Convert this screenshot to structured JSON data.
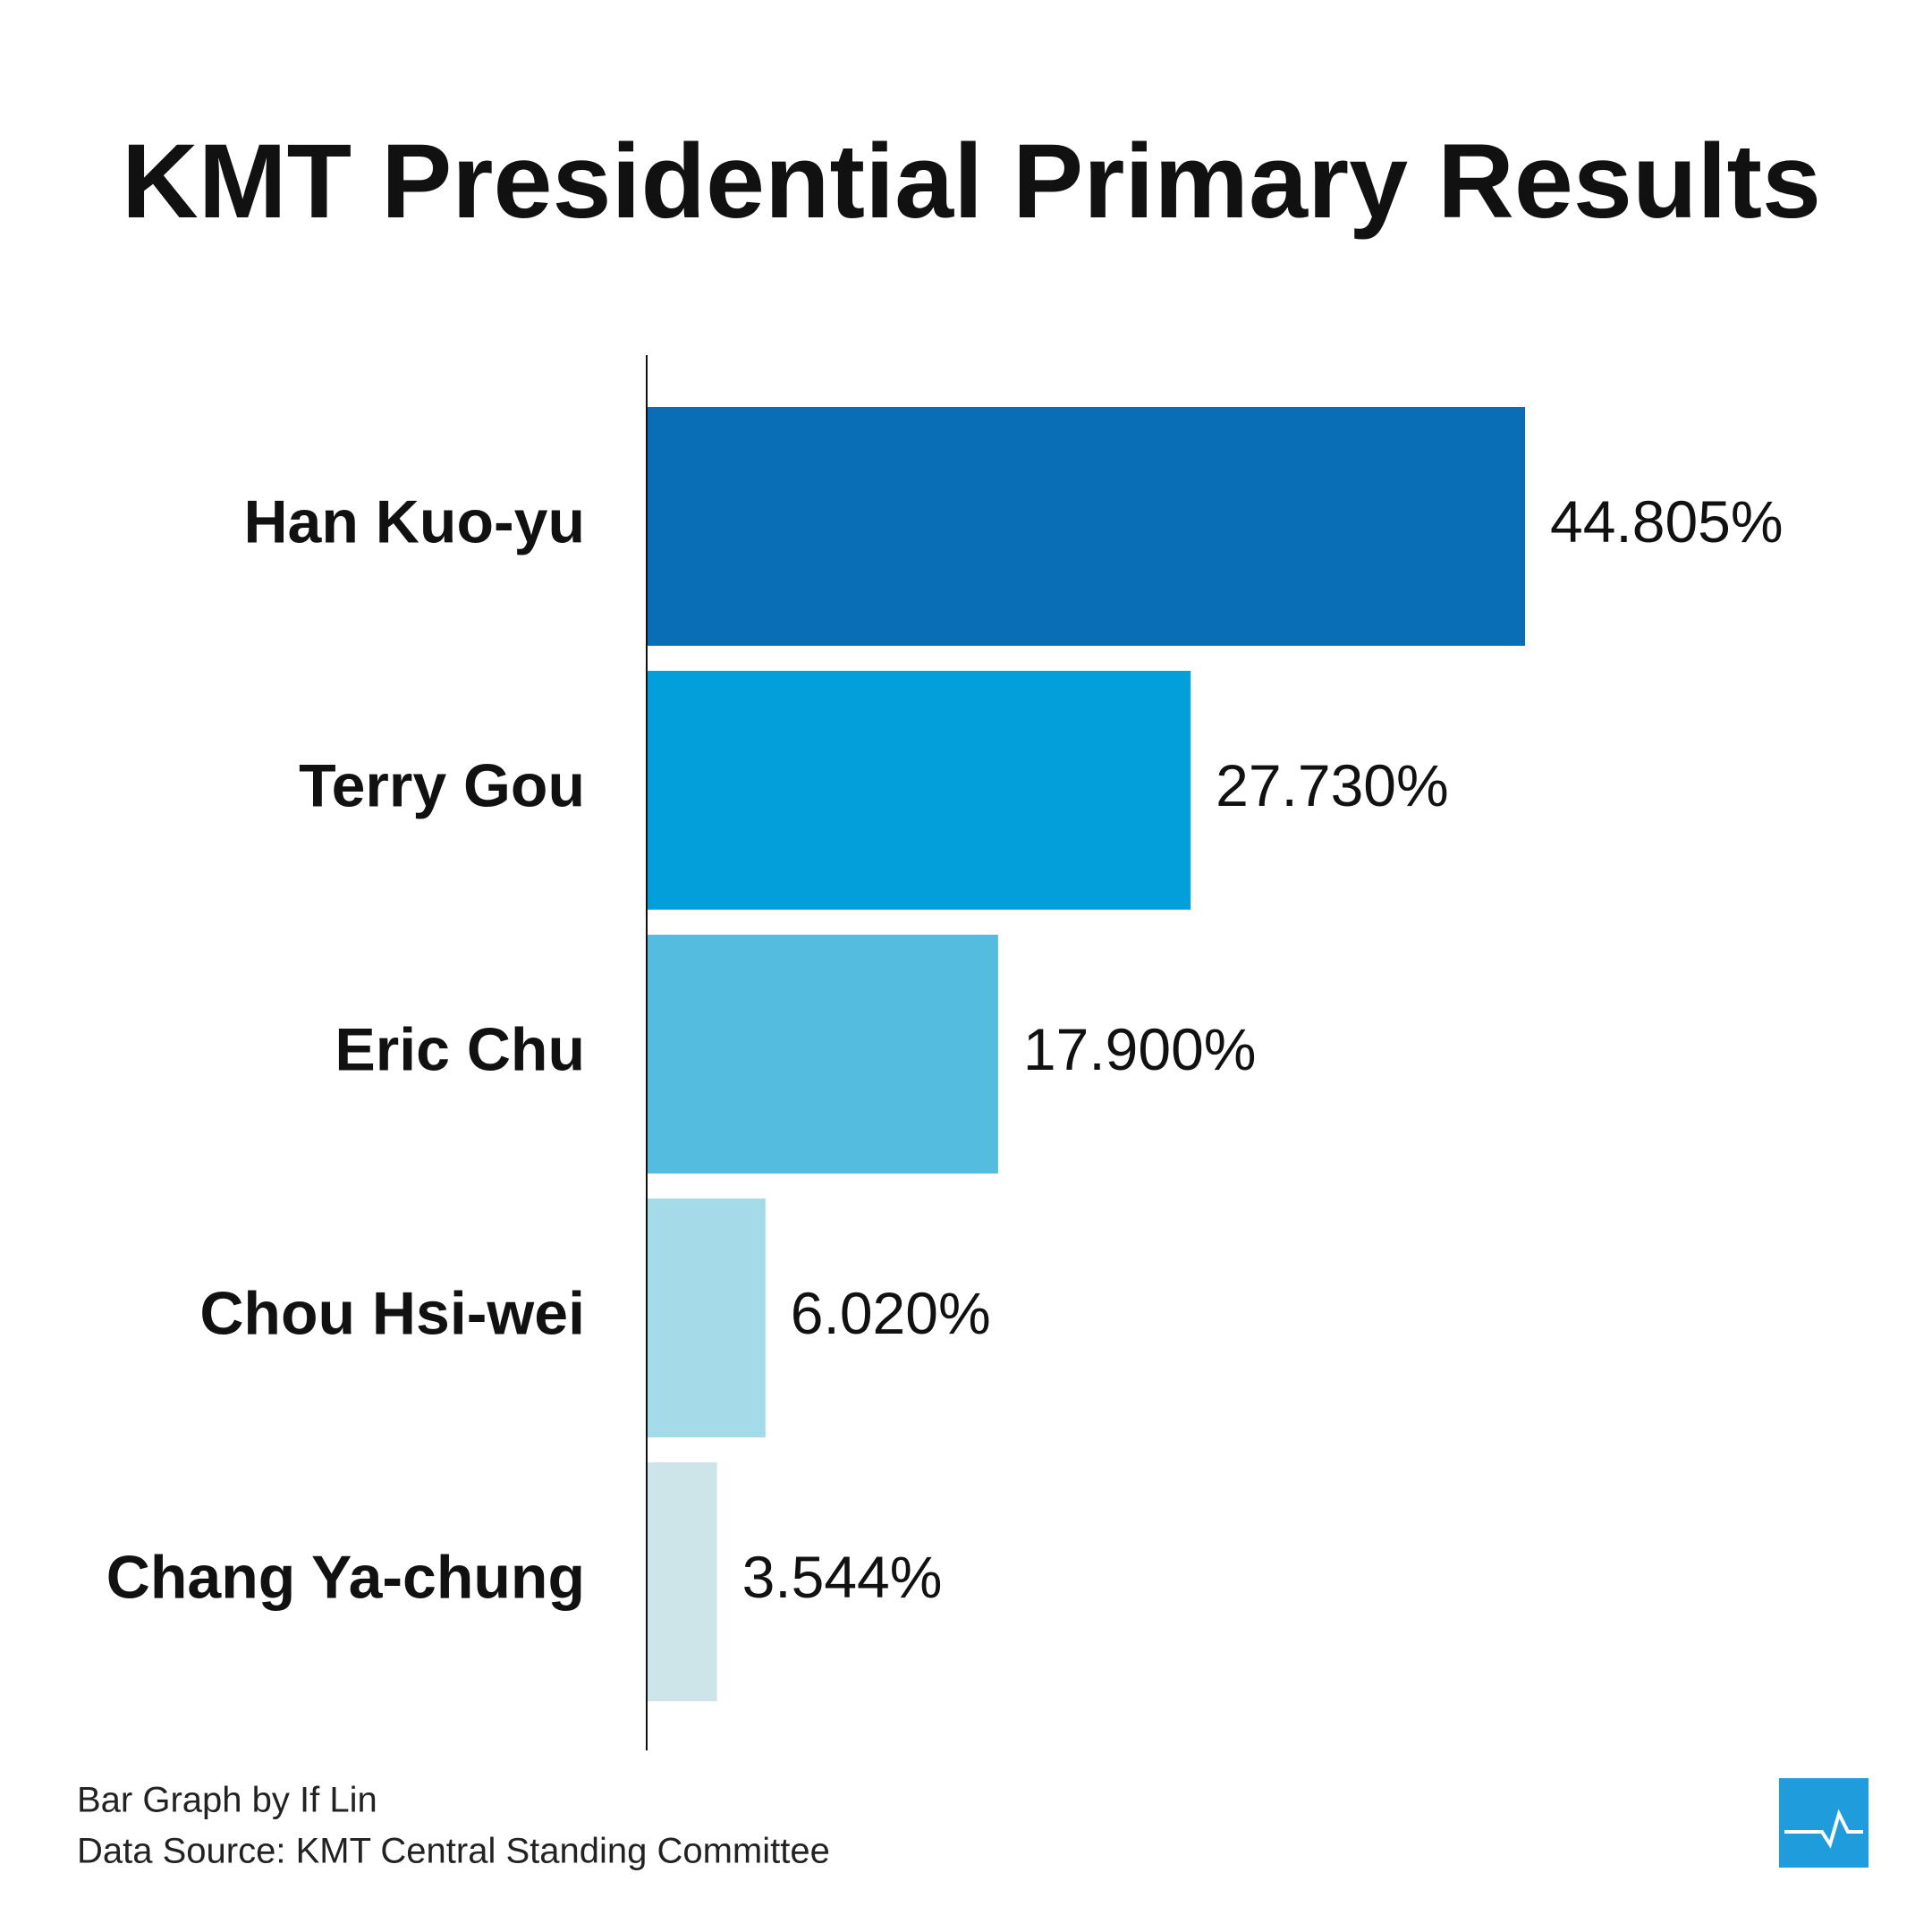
{
  "chart_data": {
    "type": "hbar",
    "title": "KMT Presidential Primary Results",
    "categories": [
      "Han Kuo-yu",
      "Terry Gou",
      "Eric Chu",
      "Chou Hsi-wei",
      "Chang Ya-chung"
    ],
    "values": [
      44.805,
      27.73,
      17.9,
      6.02,
      3.544
    ],
    "value_labels": [
      "44.805%",
      "27.730%",
      "17.900%",
      "6.020%",
      "3.544%"
    ],
    "colors": [
      "#096eb6",
      "#039fda",
      "#54bcdf",
      "#a5dbe8",
      "#cde4e8"
    ],
    "credit": "Bar Graph by If Lin",
    "source": "Data Source: KMT Central Standing Committee"
  }
}
